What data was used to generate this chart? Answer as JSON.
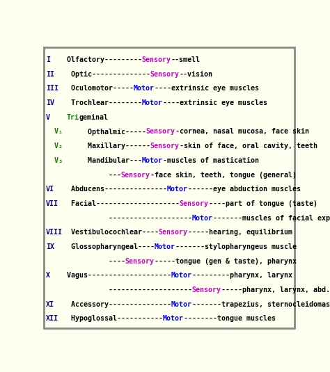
{
  "background_color": "#FFFFF0",
  "border_color": "#888888",
  "rows": [
    [
      {
        "t": "I",
        "c": "#00008B"
      },
      {
        "t": "    Olfactory---------",
        "c": "#000000"
      },
      {
        "t": "Sensory",
        "c": "#CC00CC"
      },
      {
        "t": "--smell",
        "c": "#000000"
      }
    ],
    [
      {
        "t": "II",
        "c": "#00008B"
      },
      {
        "t": "    Optic--------------",
        "c": "#000000"
      },
      {
        "t": "Sensory",
        "c": "#CC00CC"
      },
      {
        "t": "--vision",
        "c": "#000000"
      }
    ],
    [
      {
        "t": "III",
        "c": "#00008B"
      },
      {
        "t": "   Oculomotor-----",
        "c": "#000000"
      },
      {
        "t": "Motor",
        "c": "#0000EE"
      },
      {
        "t": "----extrinsic eye muscles",
        "c": "#000000"
      }
    ],
    [
      {
        "t": "IV",
        "c": "#00008B"
      },
      {
        "t": "    Trochlear--------",
        "c": "#000000"
      },
      {
        "t": "Motor",
        "c": "#0000EE"
      },
      {
        "t": "----extrinsic eye muscles",
        "c": "#000000"
      }
    ],
    [
      {
        "t": "V",
        "c": "#00008B"
      },
      {
        "t": "    ",
        "c": "#000000"
      },
      {
        "t": "Tri",
        "c": "#008000"
      },
      {
        "t": "geminal",
        "c": "#000000"
      }
    ],
    [
      {
        "t": "  V₁",
        "c": "#008000"
      },
      {
        "t": "      Opthalmic-----",
        "c": "#000000"
      },
      {
        "t": "Sensory",
        "c": "#CC00CC"
      },
      {
        "t": "-cornea, nasal mucosa, face skin",
        "c": "#000000"
      }
    ],
    [
      {
        "t": "  V₂",
        "c": "#008000"
      },
      {
        "t": "      Maxillary------",
        "c": "#000000"
      },
      {
        "t": "Sensory",
        "c": "#CC00CC"
      },
      {
        "t": "-skin of face, oral cavity, teeth",
        "c": "#000000"
      }
    ],
    [
      {
        "t": "  V₃",
        "c": "#008000"
      },
      {
        "t": "      Mandibular---",
        "c": "#000000"
      },
      {
        "t": "Motor",
        "c": "#0000EE"
      },
      {
        "t": "-muscles of mastication",
        "c": "#000000"
      }
    ],
    [
      {
        "t": "               ---",
        "c": "#000000"
      },
      {
        "t": "Sensory",
        "c": "#CC00CC"
      },
      {
        "t": "-face skin, teeth, tongue (general)",
        "c": "#000000"
      }
    ],
    [
      {
        "t": "VI",
        "c": "#00008B"
      },
      {
        "t": "    Abducens---------------",
        "c": "#000000"
      },
      {
        "t": "Motor",
        "c": "#0000EE"
      },
      {
        "t": "------eye abduction muscles",
        "c": "#000000"
      }
    ],
    [
      {
        "t": "VII",
        "c": "#00008B"
      },
      {
        "t": "   Facial--------------------",
        "c": "#000000"
      },
      {
        "t": "Sensory",
        "c": "#CC00CC"
      },
      {
        "t": "----part of tongue (taste)",
        "c": "#000000"
      }
    ],
    [
      {
        "t": "               --------------------",
        "c": "#000000"
      },
      {
        "t": "Motor",
        "c": "#0000EE"
      },
      {
        "t": "-------muscles of facial expression",
        "c": "#000000"
      }
    ],
    [
      {
        "t": "VIII",
        "c": "#00008B"
      },
      {
        "t": "  Vestibulocochlear----",
        "c": "#000000"
      },
      {
        "t": "Sensory",
        "c": "#CC00CC"
      },
      {
        "t": "-----hearing, equilibrium",
        "c": "#000000"
      }
    ],
    [
      {
        "t": "IX",
        "c": "#00008B"
      },
      {
        "t": "    Glossopharyngeal----",
        "c": "#000000"
      },
      {
        "t": "Motor",
        "c": "#0000EE"
      },
      {
        "t": "-------stylopharyngeus muscle",
        "c": "#000000"
      }
    ],
    [
      {
        "t": "               ----",
        "c": "#000000"
      },
      {
        "t": "Sensory",
        "c": "#CC00CC"
      },
      {
        "t": "-----tongue (gen & taste), pharynx",
        "c": "#000000"
      }
    ],
    [
      {
        "t": "X",
        "c": "#00008B"
      },
      {
        "t": "    Vagus--------------------",
        "c": "#000000"
      },
      {
        "t": "Motor",
        "c": "#0000EE"
      },
      {
        "t": "---------pharynx, larynx",
        "c": "#000000"
      }
    ],
    [
      {
        "t": "               --------------------",
        "c": "#000000"
      },
      {
        "t": "Sensory",
        "c": "#CC00CC"
      },
      {
        "t": "-----pharynx, larynx, abd. organs",
        "c": "#000000"
      }
    ],
    [
      {
        "t": "XI",
        "c": "#00008B"
      },
      {
        "t": "    Accessory---------------",
        "c": "#000000"
      },
      {
        "t": "Motor",
        "c": "#0000EE"
      },
      {
        "t": "-------trapezius, sternocleidomastoid",
        "c": "#000000"
      }
    ],
    [
      {
        "t": "XII",
        "c": "#00008B"
      },
      {
        "t": "   Hypoglossal-----------",
        "c": "#000000"
      },
      {
        "t": "Motor",
        "c": "#0000EE"
      },
      {
        "t": "--------tongue muscles",
        "c": "#000000"
      }
    ]
  ]
}
